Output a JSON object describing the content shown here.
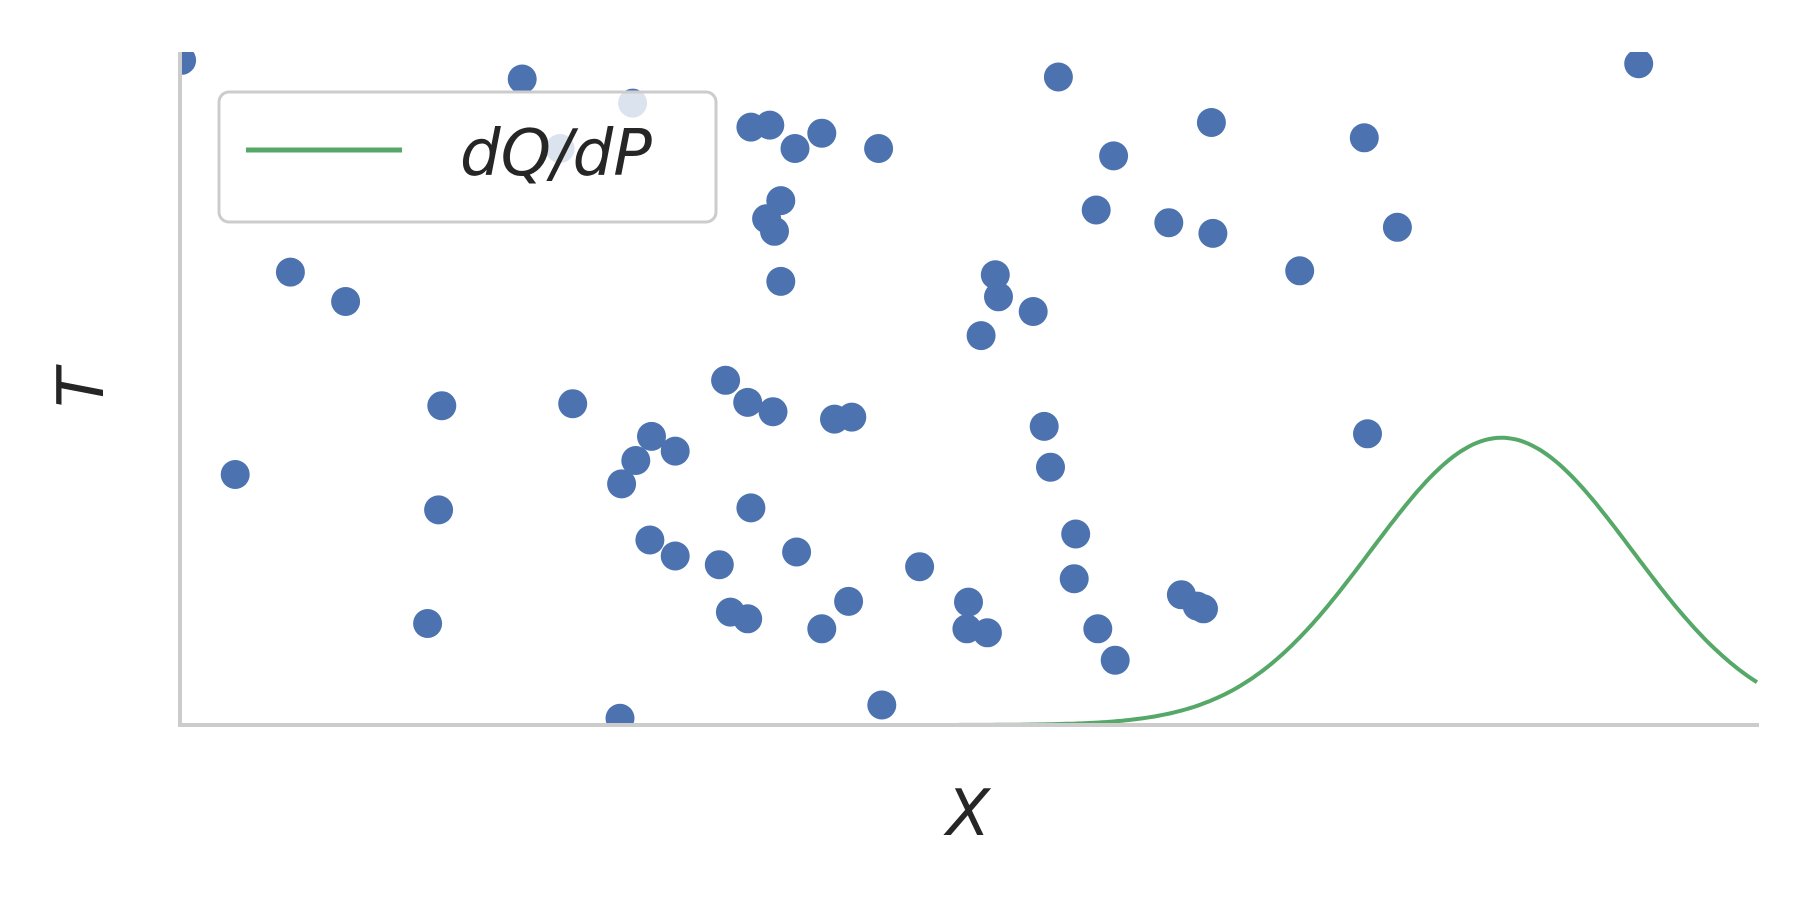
{
  "colors": {
    "background": "#ffffff",
    "axis": "#cccccc",
    "points": "#4c72b0",
    "curve": "#55a868",
    "legend_border": "#cccccc",
    "text": "#262626"
  },
  "chart_data": {
    "type": "scatter",
    "title": "",
    "xlabel": "X",
    "ylabel": "T",
    "xlim": [
      0,
      1
    ],
    "ylim": [
      0,
      1
    ],
    "grid": false,
    "ticks_visible": false,
    "legend": {
      "placement": "top-left",
      "entries": [
        "dQ/dP"
      ]
    },
    "scatter": {
      "points": [
        [
          0.001,
          0.995
        ],
        [
          0.217,
          0.967
        ],
        [
          0.287,
          0.931
        ],
        [
          0.241,
          0.863
        ],
        [
          0.07,
          0.678
        ],
        [
          0.105,
          0.634
        ],
        [
          0.166,
          0.478
        ],
        [
          0.035,
          0.375
        ],
        [
          0.164,
          0.322
        ],
        [
          0.157,
          0.152
        ],
        [
          0.249,
          0.481
        ],
        [
          0.28,
          0.361
        ],
        [
          0.289,
          0.396
        ],
        [
          0.299,
          0.432
        ],
        [
          0.314,
          0.41
        ],
        [
          0.298,
          0.277
        ],
        [
          0.314,
          0.253
        ],
        [
          0.279,
          0.01
        ],
        [
          0.36,
          0.483
        ],
        [
          0.346,
          0.516
        ],
        [
          0.342,
          0.24
        ],
        [
          0.349,
          0.169
        ],
        [
          0.36,
          0.159
        ],
        [
          0.362,
          0.325
        ],
        [
          0.362,
          0.895
        ],
        [
          0.374,
          0.898
        ],
        [
          0.381,
          0.785
        ],
        [
          0.372,
          0.758
        ],
        [
          0.377,
          0.739
        ],
        [
          0.381,
          0.664
        ],
        [
          0.376,
          0.469
        ],
        [
          0.39,
          0.863
        ],
        [
          0.407,
          0.886
        ],
        [
          0.415,
          0.458
        ],
        [
          0.426,
          0.461
        ],
        [
          0.391,
          0.259
        ],
        [
          0.424,
          0.185
        ],
        [
          0.407,
          0.144
        ],
        [
          0.443,
          0.863
        ],
        [
          0.445,
          0.03
        ],
        [
          0.469,
          0.237
        ],
        [
          0.5,
          0.184
        ],
        [
          0.499,
          0.144
        ],
        [
          0.512,
          0.138
        ],
        [
          0.508,
          0.583
        ],
        [
          0.519,
          0.641
        ],
        [
          0.517,
          0.674
        ],
        [
          0.541,
          0.619
        ],
        [
          0.557,
          0.97
        ],
        [
          0.548,
          0.447
        ],
        [
          0.552,
          0.386
        ],
        [
          0.568,
          0.286
        ],
        [
          0.567,
          0.219
        ],
        [
          0.581,
          0.771
        ],
        [
          0.592,
          0.852
        ],
        [
          0.582,
          0.144
        ],
        [
          0.593,
          0.097
        ],
        [
          0.627,
          0.752
        ],
        [
          0.654,
          0.902
        ],
        [
          0.655,
          0.736
        ],
        [
          0.635,
          0.195
        ],
        [
          0.645,
          0.178
        ],
        [
          0.649,
          0.174
        ],
        [
          0.71,
          0.68
        ],
        [
          0.751,
          0.879
        ],
        [
          0.772,
          0.745
        ],
        [
          0.753,
          0.436
        ],
        [
          0.925,
          0.99
        ]
      ]
    },
    "curve": {
      "name": "dQ/dP",
      "shape": "gaussian",
      "mu": 0.838,
      "sigma": 0.083,
      "peak": 0.43
    }
  }
}
